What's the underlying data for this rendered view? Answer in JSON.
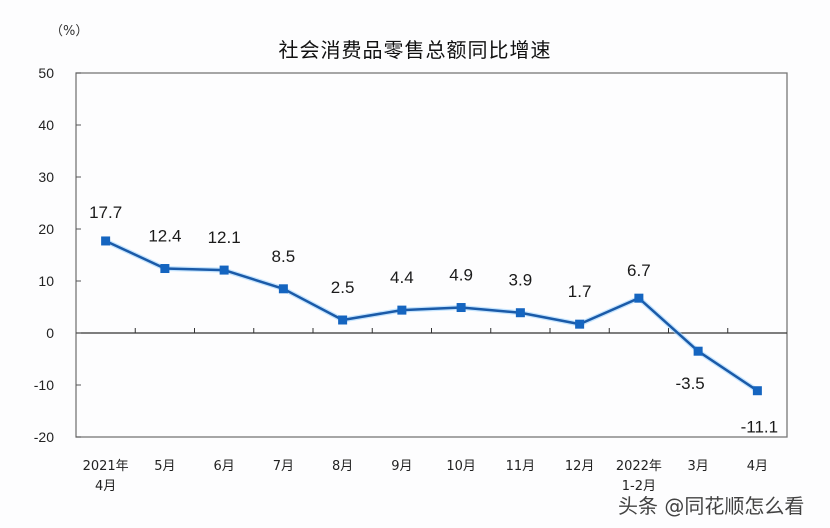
{
  "chart_data": {
    "type": "line",
    "title": "社会消费品零售总额同比增速",
    "ylabel": "（%）",
    "xlabel": "",
    "ylim": [
      -20,
      50
    ],
    "yticks": [
      50,
      40,
      30,
      20,
      10,
      0,
      -10,
      -20
    ],
    "categories": [
      "2021年\n4月",
      "5月",
      "6月",
      "7月",
      "8月",
      "9月",
      "10月",
      "11月",
      "12月",
      "2022年\n1-2月",
      "3月",
      "4月"
    ],
    "series": [
      {
        "name": "社会消费品零售总额同比增速",
        "color": "#1565c0",
        "values": [
          17.7,
          12.4,
          12.1,
          8.5,
          2.5,
          4.4,
          4.9,
          3.9,
          1.7,
          6.7,
          -3.5,
          -11.1
        ]
      }
    ],
    "data_labels": [
      "17.7",
      "12.4",
      "12.1",
      "8.5",
      "2.5",
      "4.4",
      "4.9",
      "3.9",
      "1.7",
      "6.7",
      "-3.5",
      "-11.1"
    ],
    "grid": false,
    "legend": "none"
  },
  "header": {
    "unit": "（%）",
    "title": "社会消费品零售总额同比增速"
  },
  "watermark": "头条 @同花顺怎么看"
}
